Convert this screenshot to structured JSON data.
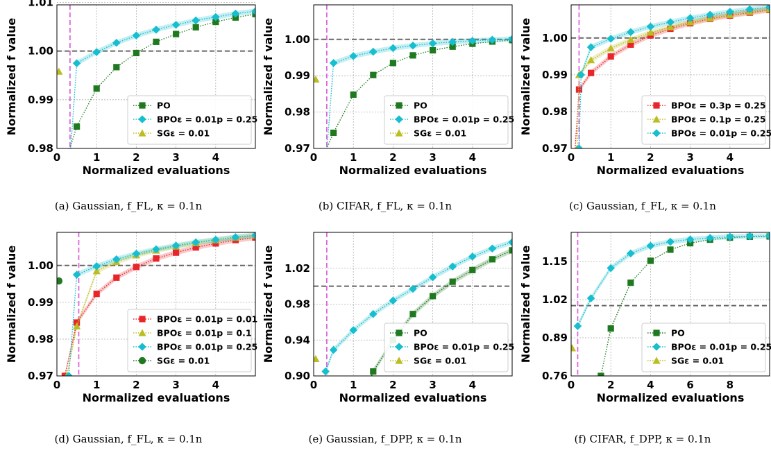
{
  "chart_data": [
    {
      "type": "line",
      "panel_caption": "(a) Gaussian, f_FL, κ = 0.1n",
      "xlabel": "Normalized evaluations",
      "ylabel": "Normalized f value",
      "xlim": [
        0,
        5
      ],
      "ylim": [
        0.98,
        1.0095
      ],
      "xticks": [
        0,
        1,
        2,
        3,
        4
      ],
      "xtick_labels": [
        "0",
        "1",
        "2",
        "3",
        "4"
      ],
      "yticks": [
        0.98,
        0.99,
        1.0,
        1.01
      ],
      "ytick_labels": [
        "0.98",
        "0.99",
        "1.00",
        "1.01"
      ],
      "hline": 1.0,
      "vline": 0.33,
      "legend_position": "lower-right",
      "series": [
        {
          "name": "PO",
          "color": "#1f7a1f",
          "marker": "square",
          "band": false,
          "x": [
            0.25,
            0.5,
            1,
            1.5,
            2,
            2.5,
            3,
            3.5,
            4,
            4.5,
            5
          ],
          "y": [
            0.978,
            0.9845,
            0.9923,
            0.9967,
            0.9996,
            1.0019,
            1.0035,
            1.0049,
            1.006,
            1.0069,
            1.0076
          ]
        },
        {
          "name": "BPOε = 0.01p = 0.25",
          "color": "#17becf",
          "marker": "diamond",
          "band": true,
          "x": [
            0.33,
            0.5,
            1,
            1.5,
            2,
            2.5,
            3,
            3.5,
            4,
            4.5,
            5
          ],
          "y": [
            0.978,
            0.9975,
            0.9998,
            1.0017,
            1.0032,
            1.0044,
            1.0054,
            1.0063,
            1.007,
            1.0077,
            1.0082
          ]
        },
        {
          "name": "SGε = 0.01",
          "color": "#bcbd22",
          "marker": "triangle",
          "band": false,
          "x": [
            0.05
          ],
          "y": [
            0.9958
          ]
        }
      ]
    },
    {
      "type": "line",
      "panel_caption": "(b) CIFAR, f_FL, κ = 0.1n",
      "xlabel": "Normalized evaluations",
      "ylabel": "Normalized f value",
      "xlim": [
        0,
        5
      ],
      "ylim": [
        0.97,
        1.0095
      ],
      "xticks": [
        0,
        1,
        2,
        3,
        4
      ],
      "xtick_labels": [
        "0",
        "1",
        "2",
        "3",
        "4"
      ],
      "yticks": [
        0.97,
        0.98,
        0.99,
        1.0
      ],
      "ytick_labels": [
        "0.97",
        "0.98",
        "0.99",
        "1.00"
      ],
      "hline": 1.0,
      "vline": 0.33,
      "legend_position": "lower-right",
      "series": [
        {
          "name": "PO",
          "color": "#1f7a1f",
          "marker": "square",
          "band": false,
          "x": [
            0.25,
            0.5,
            1,
            1.5,
            2,
            2.5,
            3,
            3.5,
            4,
            4.5,
            5
          ],
          "y": [
            0.968,
            0.9743,
            0.9848,
            0.9902,
            0.9935,
            0.9956,
            0.997,
            0.998,
            0.9988,
            0.9994,
            0.9998
          ]
        },
        {
          "name": "BPOε = 0.01p = 0.25",
          "color": "#17becf",
          "marker": "diamond",
          "band": true,
          "x": [
            0.33,
            0.5,
            1,
            1.5,
            2,
            2.5,
            3,
            3.5,
            4,
            4.5,
            5
          ],
          "y": [
            0.969,
            0.9935,
            0.9954,
            0.9966,
            0.9976,
            0.9983,
            0.9989,
            0.9993,
            0.9996,
            0.9999,
            1.0001
          ]
        },
        {
          "name": "SGε = 0.01",
          "color": "#bcbd22",
          "marker": "triangle",
          "band": false,
          "x": [
            0.05
          ],
          "y": [
            0.989
          ]
        }
      ]
    },
    {
      "type": "line",
      "panel_caption": "(c) Gaussian, f_FL, κ = 0.1n",
      "xlabel": "Normalized evaluations",
      "ylabel": "Normalized f value",
      "xlim": [
        0,
        5
      ],
      "ylim": [
        0.97,
        1.009
      ],
      "xticks": [
        0,
        1,
        2,
        3,
        4
      ],
      "xtick_labels": [
        "0",
        "1",
        "2",
        "3",
        "4"
      ],
      "yticks": [
        0.97,
        0.98,
        0.99,
        1.0
      ],
      "ytick_labels": [
        "0.97",
        "0.98",
        "0.99",
        "1.00"
      ],
      "hline": 1.0,
      "vline": 0.2,
      "legend_position": "lower-right",
      "series": [
        {
          "name": "BPOε = 0.3p = 0.25",
          "color": "#e8262a",
          "marker": "square",
          "band": true,
          "x": [
            0.1,
            0.2,
            0.5,
            1,
            1.5,
            2,
            2.5,
            3,
            3.5,
            4,
            4.5,
            5
          ],
          "y": [
            0.97,
            0.986,
            0.9905,
            0.995,
            0.9982,
            1.0007,
            1.0025,
            1.004,
            1.0052,
            1.0061,
            1.0069,
            1.0076
          ]
        },
        {
          "name": "BPOε = 0.1p = 0.25",
          "color": "#bcbd22",
          "marker": "triangle",
          "band": true,
          "x": [
            0.15,
            0.2,
            0.5,
            1,
            1.5,
            2,
            2.5,
            3,
            3.5,
            4,
            4.5,
            5
          ],
          "y": [
            0.97,
            0.99,
            0.994,
            0.9972,
            0.9995,
            1.0015,
            1.003,
            1.0043,
            1.0054,
            1.0063,
            1.0071,
            1.0078
          ]
        },
        {
          "name": "BPOε = 0.01p = 0.25",
          "color": "#17becf",
          "marker": "diamond",
          "band": true,
          "x": [
            0.2,
            0.25,
            0.5,
            1,
            1.5,
            2,
            2.5,
            3,
            3.5,
            4,
            4.5,
            5
          ],
          "y": [
            0.97,
            0.99,
            0.9975,
            0.9998,
            1.0016,
            1.0031,
            1.0043,
            1.0054,
            1.0063,
            1.0071,
            1.0078,
            1.0084
          ]
        }
      ]
    },
    {
      "type": "line",
      "panel_caption": "(d) Gaussian, f_FL, κ = 0.1n",
      "xlabel": "Normalized evaluations",
      "ylabel": "Normalized f value",
      "xlim": [
        0,
        5
      ],
      "ylim": [
        0.97,
        1.009
      ],
      "xticks": [
        0,
        1,
        2,
        3,
        4
      ],
      "xtick_labels": [
        "0",
        "1",
        "2",
        "3",
        "4"
      ],
      "yticks": [
        0.97,
        0.98,
        0.99,
        1.0
      ],
      "ytick_labels": [
        "0.97",
        "0.98",
        "0.99",
        "1.00"
      ],
      "hline": 1.0,
      "vline": 0.55,
      "legend_position": "lower-right",
      "series": [
        {
          "name": "BPOε = 0.01p = 0.01",
          "color": "#e8262a",
          "marker": "square",
          "band": true,
          "x": [
            0.2,
            0.5,
            1,
            1.5,
            2,
            2.5,
            3,
            3.5,
            4,
            4.5,
            5
          ],
          "y": [
            0.97,
            0.9845,
            0.9923,
            0.9967,
            0.9996,
            1.0019,
            1.0035,
            1.0049,
            1.006,
            1.0069,
            1.0076
          ]
        },
        {
          "name": "BPOε = 0.01p = 0.1",
          "color": "#bcbd22",
          "marker": "triangle",
          "band": true,
          "x": [
            0.25,
            0.5,
            1,
            1.5,
            2,
            2.5,
            3,
            3.5,
            4,
            4.5,
            5
          ],
          "y": [
            0.97,
            0.9835,
            0.9985,
            1.001,
            1.0028,
            1.0041,
            1.0052,
            1.0061,
            1.0069,
            1.0076,
            1.0082
          ]
        },
        {
          "name": "BPOε = 0.01p = 0.25",
          "color": "#17becf",
          "marker": "diamond",
          "band": true,
          "x": [
            0.3,
            0.5,
            1,
            1.5,
            2,
            2.5,
            3,
            3.5,
            4,
            4.5,
            5
          ],
          "y": [
            0.97,
            0.9975,
            0.9998,
            1.0017,
            1.0032,
            1.0044,
            1.0054,
            1.0063,
            1.007,
            1.0077,
            1.0082
          ]
        },
        {
          "name": "SGε = 0.01",
          "color": "#1f7a1f",
          "marker": "circle",
          "band": false,
          "x": [
            0.05
          ],
          "y": [
            0.9958
          ]
        }
      ]
    },
    {
      "type": "line",
      "panel_caption": "(e) Gaussian, f_DPP, κ = 0.1n",
      "xlabel": "Normalized evaluations",
      "ylabel": "Normalized f value",
      "xlim": [
        0,
        5
      ],
      "ylim": [
        0.9,
        1.06
      ],
      "xticks": [
        0,
        1,
        2,
        3,
        4
      ],
      "xtick_labels": [
        "0",
        "1",
        "2",
        "3",
        "4"
      ],
      "yticks": [
        0.9,
        0.94,
        0.98,
        1.02
      ],
      "ytick_labels": [
        "0.90",
        "0.94",
        "0.98",
        "1.02"
      ],
      "hline": 1.0,
      "vline": 0.33,
      "legend_position": "lower-right",
      "series": [
        {
          "name": "PO",
          "color": "#1f7a1f",
          "marker": "square",
          "band": true,
          "x": [
            1.2,
            1.5,
            2,
            2.5,
            3,
            3.5,
            4,
            4.5,
            5
          ],
          "y": [
            0.87,
            0.905,
            0.94,
            0.969,
            0.989,
            1.005,
            1.018,
            1.03,
            1.04
          ]
        },
        {
          "name": "BPOε = 0.01p = 0.25",
          "color": "#17becf",
          "marker": "diamond",
          "band": true,
          "x": [
            0.3,
            0.5,
            1,
            1.5,
            2,
            2.5,
            3,
            3.5,
            4,
            4.5,
            5
          ],
          "y": [
            0.905,
            0.929,
            0.951,
            0.969,
            0.984,
            0.997,
            1.01,
            1.022,
            1.033,
            1.042,
            1.049
          ]
        },
        {
          "name": "SGε = 0.01",
          "color": "#bcbd22",
          "marker": "triangle",
          "band": false,
          "x": [
            0.05
          ],
          "y": [
            0.919
          ]
        }
      ]
    },
    {
      "type": "line",
      "panel_caption": "(f) CIFAR, f_DPP, κ = 0.1n",
      "xlabel": "Normalized evaluations",
      "ylabel": "Normalized f value",
      "xlim": [
        0,
        10
      ],
      "ylim": [
        0.76,
        1.25
      ],
      "xticks": [
        0,
        2,
        4,
        6,
        8
      ],
      "xtick_labels": [
        "0",
        "2",
        "4",
        "6",
        "8"
      ],
      "yticks": [
        0.76,
        0.89,
        1.02,
        1.15
      ],
      "ytick_labels": [
        "0.76",
        "0.89",
        "1.02",
        "1.15"
      ],
      "hline": 1.0,
      "vline": 0.33,
      "legend_position": "lower-right",
      "series": [
        {
          "name": "PO",
          "color": "#1f7a1f",
          "marker": "square",
          "band": false,
          "x": [
            1.5,
            2,
            3,
            4,
            5,
            6,
            7,
            8,
            9,
            10
          ],
          "y": [
            0.76,
            0.922,
            1.078,
            1.153,
            1.191,
            1.213,
            1.225,
            1.232,
            1.235,
            1.236
          ]
        },
        {
          "name": "BPOε = 0.01p = 0.25",
          "color": "#17becf",
          "marker": "diamond",
          "band": true,
          "x": [
            0.33,
            1,
            2,
            3,
            4,
            5,
            6,
            7,
            8,
            9,
            10
          ],
          "y": [
            0.93,
            1.025,
            1.128,
            1.178,
            1.204,
            1.218,
            1.226,
            1.231,
            1.235,
            1.237,
            1.238
          ]
        },
        {
          "name": "SGε = 0.01",
          "color": "#bcbd22",
          "marker": "triangle",
          "band": false,
          "x": [
            0.05
          ],
          "y": [
            0.855
          ]
        }
      ]
    }
  ]
}
